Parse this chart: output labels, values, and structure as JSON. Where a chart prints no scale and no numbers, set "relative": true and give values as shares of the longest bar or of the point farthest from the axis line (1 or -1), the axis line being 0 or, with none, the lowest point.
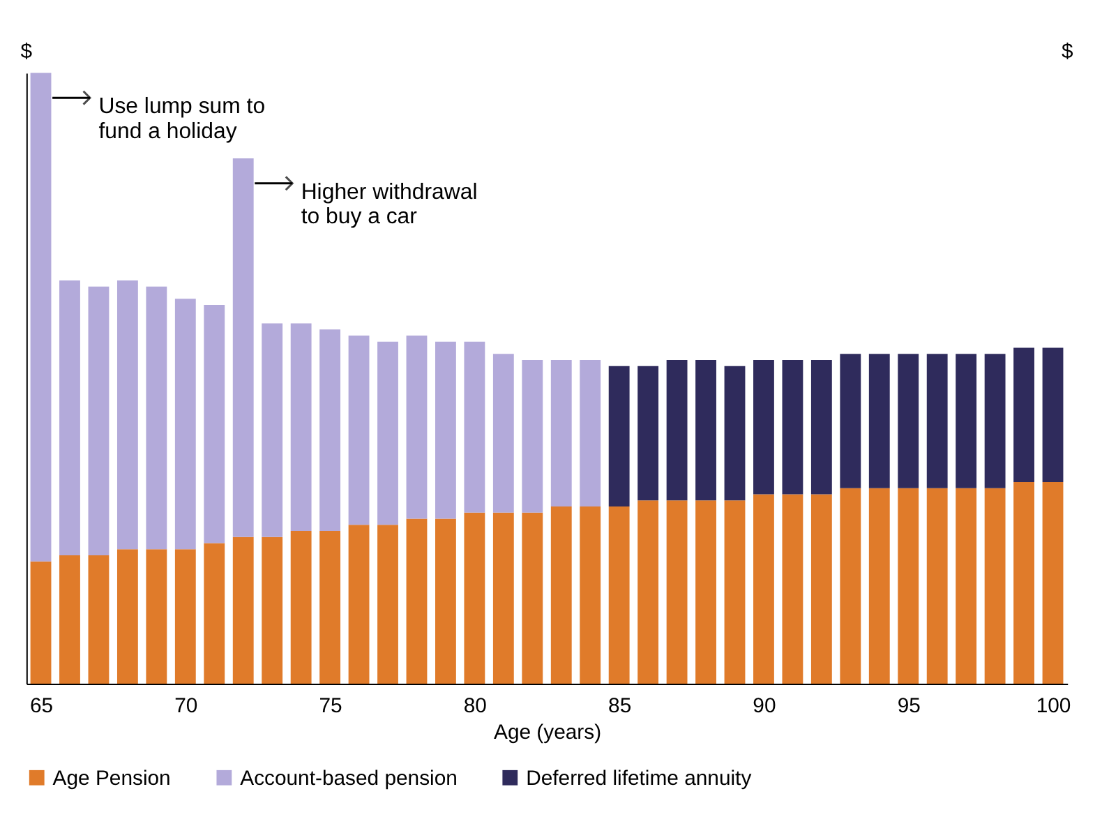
{
  "chart_data": {
    "type": "bar",
    "stacked": true,
    "relative": true,
    "xlabel": "Age (years)",
    "ylabel": "$",
    "y2label": "$",
    "x": [
      65,
      66,
      67,
      68,
      69,
      70,
      71,
      72,
      73,
      74,
      75,
      76,
      77,
      78,
      79,
      80,
      81,
      82,
      83,
      84,
      85,
      86,
      87,
      88,
      89,
      90,
      91,
      92,
      93,
      94,
      95,
      96,
      97,
      98,
      99,
      100
    ],
    "xlim": [
      64.5,
      100.5
    ],
    "xticks": [
      65,
      70,
      75,
      80,
      85,
      90,
      95,
      100
    ],
    "series": [
      {
        "name": "Age Pension",
        "color": "#e07b2a",
        "values": [
          0.2,
          0.21,
          0.21,
          0.22,
          0.22,
          0.22,
          0.23,
          0.24,
          0.24,
          0.25,
          0.25,
          0.26,
          0.26,
          0.27,
          0.27,
          0.28,
          0.28,
          0.28,
          0.29,
          0.29,
          0.29,
          0.3,
          0.3,
          0.3,
          0.3,
          0.31,
          0.31,
          0.31,
          0.32,
          0.32,
          0.32,
          0.32,
          0.32,
          0.32,
          0.33,
          0.33
        ]
      },
      {
        "name": "Account-based pension",
        "color": "#b3aada",
        "values": [
          0.8,
          0.45,
          0.44,
          0.44,
          0.43,
          0.41,
          0.39,
          0.62,
          0.35,
          0.34,
          0.33,
          0.31,
          0.3,
          0.3,
          0.29,
          0.28,
          0.26,
          0.25,
          0.24,
          0.24,
          null,
          null,
          null,
          null,
          null,
          null,
          null,
          null,
          null,
          null,
          null,
          null,
          null,
          null,
          null,
          null
        ]
      },
      {
        "name": "Deferred lifetime annuity",
        "color": "#2f2b5c",
        "values": [
          null,
          null,
          null,
          null,
          null,
          null,
          null,
          null,
          null,
          null,
          null,
          null,
          null,
          null,
          null,
          null,
          null,
          null,
          null,
          null,
          0.23,
          0.22,
          0.23,
          0.23,
          0.22,
          0.22,
          0.22,
          0.22,
          0.22,
          0.22,
          0.22,
          0.22,
          0.22,
          0.22,
          0.22,
          0.22
        ]
      }
    ],
    "annotations": [
      {
        "text": "Use lump sum to\nfund a holiday",
        "x": 65,
        "y": 1.0
      },
      {
        "text": "Higher withdrawal\nto buy a car",
        "x": 72,
        "y": 0.86
      }
    ],
    "legend": "bottom",
    "grid": false
  }
}
